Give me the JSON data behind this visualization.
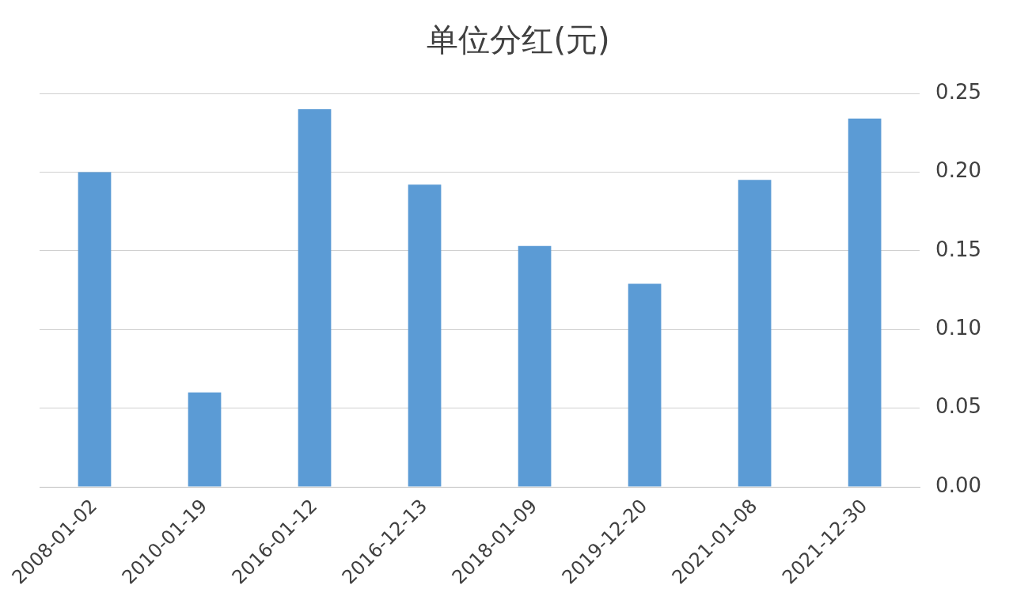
{
  "chart_data": {
    "type": "bar",
    "title": "单位分红(元)",
    "categories": [
      "2008-01-02",
      "2010-01-19",
      "2016-01-12",
      "2016-12-13",
      "2018-01-09",
      "2019-12-20",
      "2021-01-08",
      "2021-12-30"
    ],
    "values": [
      0.2,
      0.06,
      0.24,
      0.192,
      0.153,
      0.129,
      0.195,
      0.234
    ],
    "color": "#5b9bd5",
    "ylim": [
      0,
      0.25
    ],
    "yticks": [
      {
        "value": 0,
        "label": "0.00"
      },
      {
        "value": 0.05,
        "label": "0.05"
      },
      {
        "value": 0.1,
        "label": "0.10"
      },
      {
        "value": 0.15,
        "label": "0.15"
      },
      {
        "value": 0.2,
        "label": "0.20"
      },
      {
        "value": 0.25,
        "label": "0.25"
      }
    ],
    "grid": "y",
    "legend": false
  }
}
